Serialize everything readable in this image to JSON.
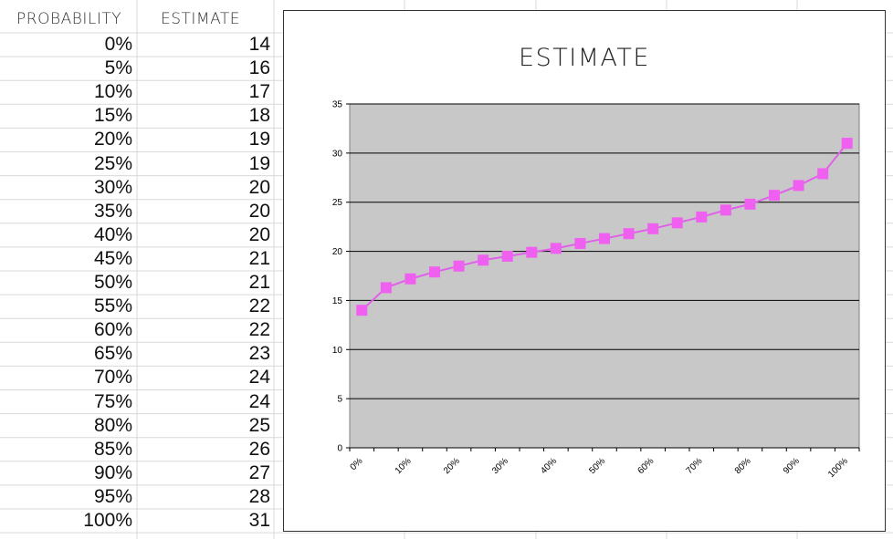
{
  "sheet": {
    "headers": {
      "probability": "PROBABILITY",
      "estimate": "ESTIMATE"
    },
    "rows": [
      {
        "probability": "0%",
        "estimate": "14"
      },
      {
        "probability": "5%",
        "estimate": "16"
      },
      {
        "probability": "10%",
        "estimate": "17"
      },
      {
        "probability": "15%",
        "estimate": "18"
      },
      {
        "probability": "20%",
        "estimate": "19"
      },
      {
        "probability": "25%",
        "estimate": "19"
      },
      {
        "probability": "30%",
        "estimate": "20"
      },
      {
        "probability": "35%",
        "estimate": "20"
      },
      {
        "probability": "40%",
        "estimate": "20"
      },
      {
        "probability": "45%",
        "estimate": "21"
      },
      {
        "probability": "50%",
        "estimate": "21"
      },
      {
        "probability": "55%",
        "estimate": "22"
      },
      {
        "probability": "60%",
        "estimate": "22"
      },
      {
        "probability": "65%",
        "estimate": "23"
      },
      {
        "probability": "70%",
        "estimate": "24"
      },
      {
        "probability": "75%",
        "estimate": "24"
      },
      {
        "probability": "80%",
        "estimate": "25"
      },
      {
        "probability": "85%",
        "estimate": "26"
      },
      {
        "probability": "90%",
        "estimate": "27"
      },
      {
        "probability": "95%",
        "estimate": "28"
      },
      {
        "probability": "100%",
        "estimate": "31"
      }
    ]
  },
  "chart_data": {
    "type": "line",
    "title": "ESTIMATE",
    "xlabel": "",
    "ylabel": "",
    "categories": [
      "0%",
      "5%",
      "10%",
      "15%",
      "20%",
      "25%",
      "30%",
      "35%",
      "40%",
      "45%",
      "50%",
      "55%",
      "60%",
      "65%",
      "70%",
      "75%",
      "80%",
      "85%",
      "90%",
      "95%",
      "100%"
    ],
    "x_tick_labels": [
      "0%",
      "10%",
      "20%",
      "30%",
      "40%",
      "50%",
      "60%",
      "70%",
      "80%",
      "90%",
      "100%"
    ],
    "series": [
      {
        "values": [
          14.0,
          16.3,
          17.2,
          17.9,
          18.5,
          19.1,
          19.5,
          19.9,
          20.3,
          20.8,
          21.3,
          21.8,
          22.3,
          22.9,
          23.5,
          24.2,
          24.8,
          25.7,
          26.7,
          27.9,
          31.0
        ]
      }
    ],
    "ylim": [
      0,
      35
    ],
    "y_ticks": [
      0,
      5,
      10,
      15,
      20,
      25,
      30,
      35
    ],
    "grid": true,
    "legend": "none",
    "colors": {
      "line": "#e060e8",
      "marker": "#f060f0",
      "plot_bg": "#c8c8c8",
      "grid": "#000000"
    }
  }
}
